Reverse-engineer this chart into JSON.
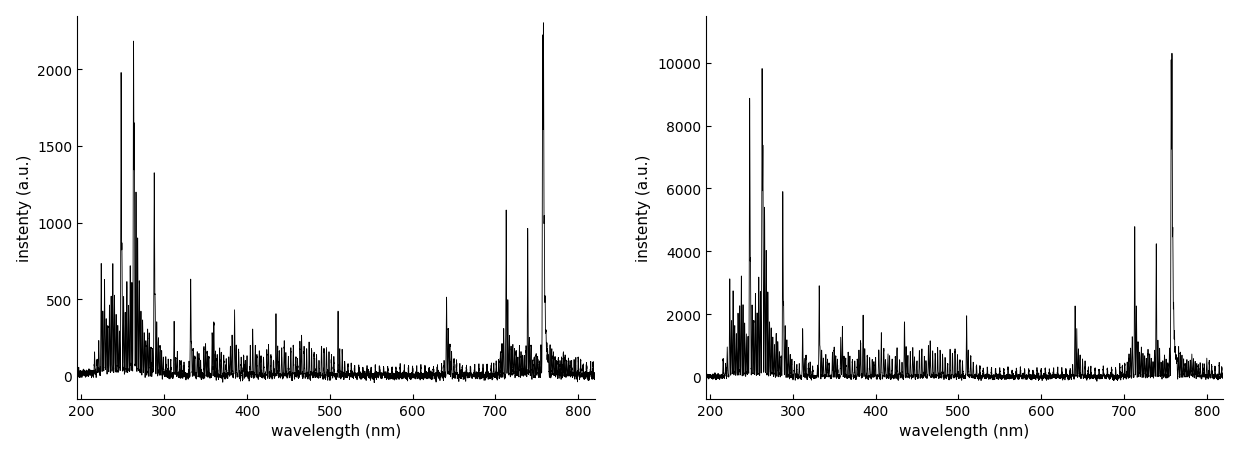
{
  "xlabel": "wavelength (nm)",
  "ylabel": "instenty (a.u.)",
  "plot1": {
    "xlim": [
      195,
      820
    ],
    "ylim": [
      -150,
      2350
    ],
    "yticks": [
      0,
      500,
      1000,
      1500,
      2000
    ],
    "xticks": [
      200,
      300,
      400,
      500,
      600,
      700,
      800
    ]
  },
  "plot2": {
    "xlim": [
      195,
      820
    ],
    "ylim": [
      -700,
      11500
    ],
    "yticks": [
      0,
      2000,
      4000,
      6000,
      8000,
      10000
    ],
    "xticks": [
      200,
      300,
      400,
      500,
      600,
      700,
      800
    ]
  },
  "line_color": "#000000",
  "line_width": 0.6,
  "background_color": "#ffffff",
  "font_size_label": 11,
  "font_size_tick": 10,
  "peaks1": [
    [
      216,
      120
    ],
    [
      219,
      80
    ],
    [
      221,
      200
    ],
    [
      224,
      700
    ],
    [
      226,
      400
    ],
    [
      228,
      600
    ],
    [
      230,
      350
    ],
    [
      232,
      300
    ],
    [
      234,
      450
    ],
    [
      236,
      500
    ],
    [
      238,
      700
    ],
    [
      240,
      500
    ],
    [
      242,
      380
    ],
    [
      244,
      300
    ],
    [
      246,
      280
    ],
    [
      248,
      1950
    ],
    [
      249,
      800
    ],
    [
      251,
      500
    ],
    [
      253,
      400
    ],
    [
      255,
      600
    ],
    [
      257,
      450
    ],
    [
      259,
      700
    ],
    [
      261,
      600
    ],
    [
      263,
      2150
    ],
    [
      264,
      1600
    ],
    [
      266,
      1200
    ],
    [
      268,
      900
    ],
    [
      270,
      600
    ],
    [
      272,
      400
    ],
    [
      274,
      350
    ],
    [
      276,
      280
    ],
    [
      278,
      220
    ],
    [
      280,
      300
    ],
    [
      282,
      250
    ],
    [
      284,
      180
    ],
    [
      286,
      150
    ],
    [
      288,
      1300
    ],
    [
      289,
      500
    ],
    [
      291,
      350
    ],
    [
      293,
      250
    ],
    [
      295,
      200
    ],
    [
      297,
      150
    ],
    [
      299,
      120
    ],
    [
      302,
      100
    ],
    [
      305,
      80
    ],
    [
      308,
      90
    ],
    [
      312,
      350
    ],
    [
      314,
      120
    ],
    [
      316,
      150
    ],
    [
      319,
      90
    ],
    [
      321,
      80
    ],
    [
      324,
      70
    ],
    [
      330,
      80
    ],
    [
      332,
      630
    ],
    [
      333,
      200
    ],
    [
      335,
      180
    ],
    [
      337,
      130
    ],
    [
      340,
      150
    ],
    [
      342,
      120
    ],
    [
      344,
      100
    ],
    [
      348,
      180
    ],
    [
      350,
      200
    ],
    [
      352,
      150
    ],
    [
      354,
      120
    ],
    [
      358,
      280
    ],
    [
      360,
      350
    ],
    [
      362,
      150
    ],
    [
      364,
      120
    ],
    [
      367,
      180
    ],
    [
      369,
      150
    ],
    [
      372,
      120
    ],
    [
      375,
      100
    ],
    [
      378,
      130
    ],
    [
      380,
      180
    ],
    [
      382,
      250
    ],
    [
      385,
      420
    ],
    [
      387,
      200
    ],
    [
      390,
      160
    ],
    [
      393,
      130
    ],
    [
      396,
      120
    ],
    [
      398,
      100
    ],
    [
      400,
      130
    ],
    [
      404,
      180
    ],
    [
      407,
      300
    ],
    [
      410,
      200
    ],
    [
      412,
      130
    ],
    [
      415,
      160
    ],
    [
      417,
      130
    ],
    [
      420,
      120
    ],
    [
      424,
      150
    ],
    [
      426,
      200
    ],
    [
      429,
      130
    ],
    [
      432,
      100
    ],
    [
      435,
      400
    ],
    [
      437,
      200
    ],
    [
      439,
      150
    ],
    [
      442,
      170
    ],
    [
      445,
      200
    ],
    [
      447,
      130
    ],
    [
      450,
      110
    ],
    [
      453,
      180
    ],
    [
      456,
      200
    ],
    [
      459,
      130
    ],
    [
      461,
      100
    ],
    [
      464,
      220
    ],
    [
      466,
      250
    ],
    [
      469,
      180
    ],
    [
      472,
      160
    ],
    [
      475,
      200
    ],
    [
      478,
      180
    ],
    [
      481,
      150
    ],
    [
      484,
      130
    ],
    [
      487,
      100
    ],
    [
      490,
      200
    ],
    [
      493,
      160
    ],
    [
      496,
      190
    ],
    [
      499,
      150
    ],
    [
      502,
      120
    ],
    [
      505,
      100
    ],
    [
      510,
      420
    ],
    [
      512,
      180
    ],
    [
      515,
      150
    ],
    [
      518,
      100
    ],
    [
      522,
      80
    ],
    [
      526,
      70
    ],
    [
      530,
      60
    ],
    [
      535,
      55
    ],
    [
      540,
      60
    ],
    [
      545,
      55
    ],
    [
      550,
      50
    ],
    [
      555,
      55
    ],
    [
      560,
      60
    ],
    [
      565,
      55
    ],
    [
      570,
      50
    ],
    [
      575,
      55
    ],
    [
      580,
      50
    ],
    [
      585,
      55
    ],
    [
      590,
      50
    ],
    [
      595,
      55
    ],
    [
      600,
      50
    ],
    [
      605,
      55
    ],
    [
      610,
      50
    ],
    [
      615,
      55
    ],
    [
      620,
      50
    ],
    [
      625,
      55
    ],
    [
      630,
      50
    ],
    [
      635,
      55
    ],
    [
      638,
      80
    ],
    [
      641,
      500
    ],
    [
      643,
      320
    ],
    [
      645,
      200
    ],
    [
      647,
      150
    ],
    [
      650,
      120
    ],
    [
      653,
      100
    ],
    [
      657,
      70
    ],
    [
      660,
      65
    ],
    [
      665,
      60
    ],
    [
      670,
      60
    ],
    [
      675,
      65
    ],
    [
      680,
      60
    ],
    [
      685,
      65
    ],
    [
      690,
      60
    ],
    [
      695,
      70
    ],
    [
      698,
      80
    ],
    [
      701,
      90
    ],
    [
      704,
      100
    ],
    [
      706,
      150
    ],
    [
      708,
      200
    ],
    [
      710,
      300
    ],
    [
      713,
      1060
    ],
    [
      715,
      500
    ],
    [
      717,
      250
    ],
    [
      719,
      180
    ],
    [
      721,
      200
    ],
    [
      723,
      170
    ],
    [
      725,
      150
    ],
    [
      727,
      130
    ],
    [
      729,
      180
    ],
    [
      731,
      150
    ],
    [
      733,
      130
    ],
    [
      735,
      110
    ],
    [
      737,
      180
    ],
    [
      739,
      950
    ],
    [
      741,
      250
    ],
    [
      743,
      200
    ],
    [
      745,
      100
    ],
    [
      747,
      120
    ],
    [
      749,
      150
    ],
    [
      751,
      120
    ],
    [
      753,
      100
    ],
    [
      755,
      200
    ],
    [
      757,
      2200
    ],
    [
      758,
      2250
    ],
    [
      759,
      1000
    ],
    [
      760,
      500
    ],
    [
      761,
      300
    ],
    [
      762,
      200
    ],
    [
      763,
      150
    ],
    [
      764,
      130
    ],
    [
      766,
      200
    ],
    [
      768,
      180
    ],
    [
      770,
      150
    ],
    [
      772,
      120
    ],
    [
      774,
      100
    ],
    [
      776,
      110
    ],
    [
      778,
      100
    ],
    [
      780,
      120
    ],
    [
      782,
      150
    ],
    [
      784,
      120
    ],
    [
      786,
      100
    ],
    [
      788,
      90
    ],
    [
      790,
      80
    ],
    [
      792,
      90
    ],
    [
      795,
      80
    ],
    [
      797,
      90
    ],
    [
      800,
      130
    ],
    [
      803,
      100
    ],
    [
      806,
      80
    ],
    [
      810,
      70
    ],
    [
      815,
      80
    ],
    [
      818,
      70
    ]
  ],
  "scale2": 4.5,
  "noise1": 12,
  "noise2": 40
}
